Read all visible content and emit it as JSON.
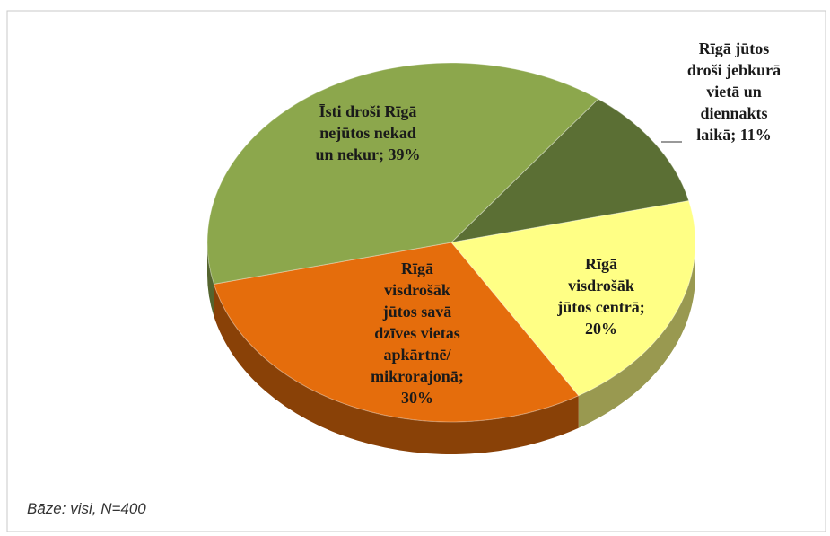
{
  "chart_data": {
    "type": "pie",
    "values": [
      11,
      20,
      30,
      39
    ],
    "value_labels": [
      "Rīgā jūtos droši jebkurā vietā un diennakts laikā; 11%",
      "Rīgā visdrošāk jūtos centrā; 20%",
      "Rīgā visdrošāk jūtos savā dzīves vietas apkārtnē/ mikrorajonā; 30%",
      "Īsti droši Rīgā nejūtos nekad un nekur; 39%"
    ],
    "colors": [
      "#5b6f34",
      "#ffff85",
      "#e56d0c",
      "#8ca74c"
    ],
    "note": "Bāze: visi, N=400"
  }
}
